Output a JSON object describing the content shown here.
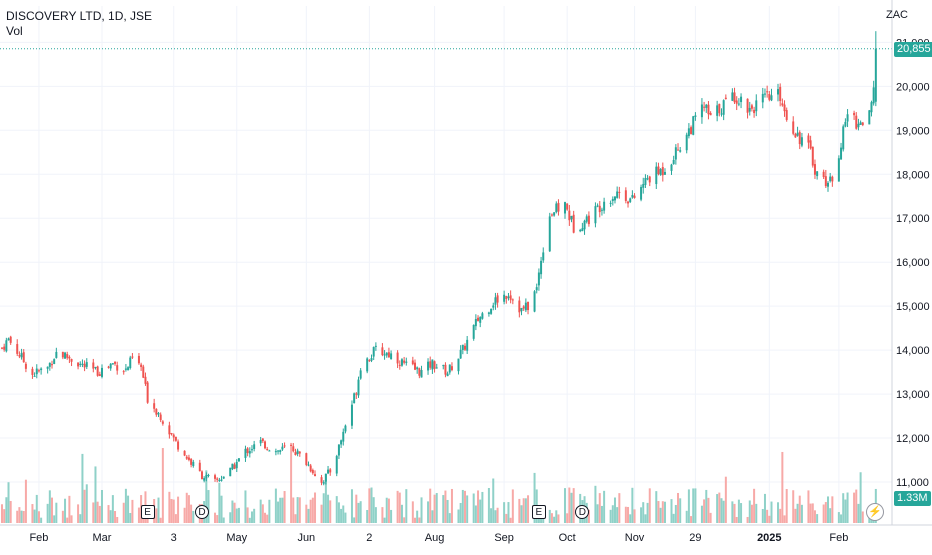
{
  "header": {
    "title": "DISCOVERY LTD, 1D, JSE",
    "volume_label": "Vol",
    "currency": "ZAC"
  },
  "colors": {
    "up": "#26a69a",
    "down": "#ef5350",
    "vol_up": "#8fd1c8",
    "vol_down": "#f7a9a7",
    "grid": "#f0f3fa",
    "axis_text": "#131722",
    "last_price_tag": "#26a69a",
    "volume_tag": "#26a69a"
  },
  "chart_data": {
    "type": "candlestick",
    "title": "DISCOVERY LTD, 1D, JSE",
    "y_axis": {
      "unit": "ZAC",
      "position": "right",
      "ticks": [
        11000,
        12000,
        13000,
        14000,
        15000,
        16000,
        17000,
        18000,
        19000,
        20000,
        21000
      ],
      "tick_labels": [
        "11,000",
        "12,000",
        "13,000",
        "14,000",
        "15,000",
        "16,000",
        "17,000",
        "18,000",
        "19,000",
        "20,000",
        "21,000"
      ],
      "range": [
        10500,
        21600
      ]
    },
    "x_axis": {
      "tick_labels": [
        "Feb",
        "Mar",
        "3",
        "May",
        "Jun",
        "2",
        "Aug",
        "Sep",
        "Oct",
        "Nov",
        "29",
        "2025",
        "Feb"
      ],
      "range": [
        "2024-01-15",
        "2025-02-21"
      ]
    },
    "grid": true,
    "last_price": 20855,
    "last_price_label": "20,855",
    "last_volume_label": "1.33M",
    "events": [
      {
        "kind": "E",
        "date": "2024-03-22"
      },
      {
        "kind": "D",
        "date": "2024-04-16"
      },
      {
        "kind": "E",
        "date": "2024-09-18"
      },
      {
        "kind": "D",
        "date": "2024-10-08"
      }
    ],
    "price_path_knots": [
      [
        "2024-01-15",
        14050
      ],
      [
        "2024-01-18",
        14250
      ],
      [
        "2024-01-23",
        13900
      ],
      [
        "2024-01-29",
        13450
      ],
      [
        "2024-02-05",
        13600
      ],
      [
        "2024-02-09",
        13950
      ],
      [
        "2024-02-14",
        13850
      ],
      [
        "2024-02-21",
        13650
      ],
      [
        "2024-02-28",
        13500
      ],
      [
        "2024-03-06",
        13700
      ],
      [
        "2024-03-12",
        13550
      ],
      [
        "2024-03-15",
        13800
      ],
      [
        "2024-03-19",
        13600
      ],
      [
        "2024-03-22",
        12900
      ],
      [
        "2024-03-28",
        12500
      ],
      [
        "2024-04-04",
        11900
      ],
      [
        "2024-04-10",
        11500
      ],
      [
        "2024-04-16",
        11150
      ],
      [
        "2024-04-22",
        11000
      ],
      [
        "2024-04-29",
        11250
      ],
      [
        "2024-05-06",
        11700
      ],
      [
        "2024-05-13",
        11900
      ],
      [
        "2024-05-20",
        11700
      ],
      [
        "2024-05-27",
        11800
      ],
      [
        "2024-06-03",
        11450
      ],
      [
        "2024-06-10",
        11000
      ],
      [
        "2024-06-14",
        11250
      ],
      [
        "2024-06-18",
        11800
      ],
      [
        "2024-06-21",
        12300
      ],
      [
        "2024-06-26",
        13100
      ],
      [
        "2024-06-28",
        13650
      ],
      [
        "2024-07-05",
        14000
      ],
      [
        "2024-07-12",
        13900
      ],
      [
        "2024-07-19",
        13650
      ],
      [
        "2024-07-26",
        13500
      ],
      [
        "2024-07-31",
        13700
      ],
      [
        "2024-08-07",
        13500
      ],
      [
        "2024-08-14",
        14000
      ],
      [
        "2024-08-21",
        14700
      ],
      [
        "2024-08-28",
        15100
      ],
      [
        "2024-09-04",
        15300
      ],
      [
        "2024-09-10",
        14900
      ],
      [
        "2024-09-13",
        15000
      ],
      [
        "2024-09-17",
        15400
      ],
      [
        "2024-09-19",
        16100
      ],
      [
        "2024-09-23",
        17100
      ],
      [
        "2024-09-30",
        17300
      ],
      [
        "2024-10-04",
        16800
      ],
      [
        "2024-10-11",
        17000
      ],
      [
        "2024-10-18",
        17400
      ],
      [
        "2024-10-25",
        17600
      ],
      [
        "2024-10-31",
        17400
      ],
      [
        "2024-11-07",
        17900
      ],
      [
        "2024-11-14",
        18100
      ],
      [
        "2024-11-20",
        18500
      ],
      [
        "2024-11-26",
        19000
      ],
      [
        "2024-12-03",
        19550
      ],
      [
        "2024-12-06",
        19250
      ],
      [
        "2024-12-10",
        19500
      ],
      [
        "2024-12-17",
        19800
      ],
      [
        "2024-12-24",
        19500
      ],
      [
        "2024-12-31",
        19700
      ],
      [
        "2025-01-07",
        19800
      ],
      [
        "2025-01-10",
        19300
      ],
      [
        "2025-01-15",
        18900
      ],
      [
        "2025-01-20",
        18600
      ],
      [
        "2025-01-24",
        18000
      ],
      [
        "2025-01-30",
        17800
      ],
      [
        "2025-02-04",
        18700
      ],
      [
        "2025-02-07",
        19400
      ],
      [
        "2025-02-12",
        19150
      ],
      [
        "2025-02-17",
        19300
      ],
      [
        "2025-02-19",
        19800
      ],
      [
        "2025-02-20",
        20855
      ]
    ],
    "volume_axis": {
      "range_max": 5.0,
      "unit": "M"
    }
  },
  "overlay": {
    "event_E": "E",
    "event_D": "D",
    "flash_icon": "⚡"
  }
}
